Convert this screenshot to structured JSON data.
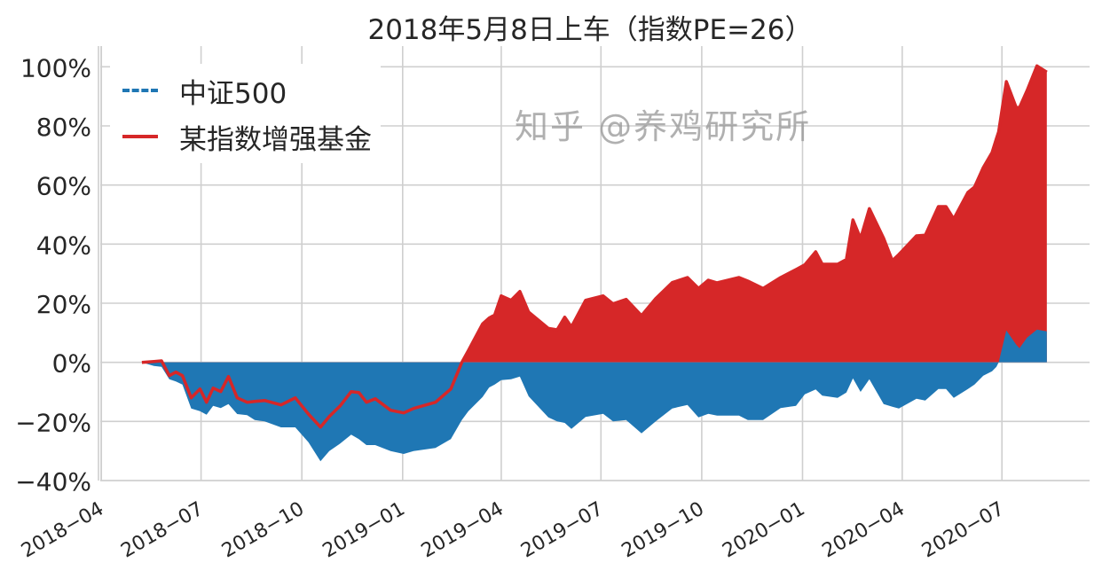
{
  "chart_data": {
    "type": "area",
    "title": "2018年5月8日上车（指数PE=26）",
    "xlabel": "",
    "ylabel": "",
    "xlim": [
      "2018-03-31",
      "2020-09-19"
    ],
    "ylim": [
      -40,
      107
    ],
    "grid": true,
    "legend_position": "top-left",
    "y_ticks": [
      -40,
      -20,
      0,
      20,
      40,
      60,
      80,
      100
    ],
    "y_tick_labels": [
      "−40%",
      "−20%",
      "0%",
      "20%",
      "40%",
      "60%",
      "80%",
      "100%"
    ],
    "x_ticks": [
      "2018-04-01",
      "2018-07-01",
      "2018-10-01",
      "2019-01-01",
      "2019-04-01",
      "2019-07-01",
      "2019-10-01",
      "2020-01-01",
      "2020-04-01",
      "2020-07-01"
    ],
    "x_tick_labels": [
      "2018−04",
      "2018−07",
      "2018−10",
      "2019−01",
      "2019−04",
      "2019−07",
      "2019−10",
      "2020−01",
      "2020−04",
      "2020−07"
    ],
    "series": [
      {
        "name": "中证500",
        "color": "#1f77b4",
        "style": "dashed",
        "points": [
          [
            "2018-05-08",
            0
          ],
          [
            "2018-05-19",
            -1.2
          ],
          [
            "2018-05-26",
            -1.5
          ],
          [
            "2018-06-02",
            -5.7
          ],
          [
            "2018-06-08",
            -6.5
          ],
          [
            "2018-06-14",
            -7.5
          ],
          [
            "2018-06-22",
            -15.6
          ],
          [
            "2018-06-30",
            -16.5
          ],
          [
            "2018-07-06",
            -17.7
          ],
          [
            "2018-07-12",
            -14.7
          ],
          [
            "2018-07-19",
            -15.5
          ],
          [
            "2018-07-26",
            -14.1
          ],
          [
            "2018-08-03",
            -17.5
          ],
          [
            "2018-08-12",
            -17.9
          ],
          [
            "2018-08-19",
            -19.5
          ],
          [
            "2018-08-28",
            -20
          ],
          [
            "2018-09-12",
            -22
          ],
          [
            "2018-09-25",
            -22
          ],
          [
            "2018-10-07",
            -27
          ],
          [
            "2018-10-18",
            -33.5
          ],
          [
            "2018-10-26",
            -30
          ],
          [
            "2018-11-05",
            -27.5
          ],
          [
            "2018-11-15",
            -24.5
          ],
          [
            "2018-11-22",
            -26
          ],
          [
            "2018-11-29",
            -28
          ],
          [
            "2018-12-07",
            -28
          ],
          [
            "2018-12-21",
            -30
          ],
          [
            "2019-01-02",
            -31
          ],
          [
            "2019-01-11",
            -30
          ],
          [
            "2019-01-31",
            -29
          ],
          [
            "2019-02-14",
            -26
          ],
          [
            "2019-02-24",
            -19.5
          ],
          [
            "2019-03-02",
            -16.5
          ],
          [
            "2019-03-15",
            -11.7
          ],
          [
            "2019-03-21",
            -8.5
          ],
          [
            "2019-03-26",
            -7.5
          ],
          [
            "2019-04-01",
            -6
          ],
          [
            "2019-04-10",
            -5.7
          ],
          [
            "2019-04-18",
            -4.8
          ],
          [
            "2019-04-26",
            -11.5
          ],
          [
            "2019-05-14",
            -18.6
          ],
          [
            "2019-05-22",
            -20
          ],
          [
            "2019-05-29",
            -20.5
          ],
          [
            "2019-06-04",
            -22.5
          ],
          [
            "2019-06-17",
            -18.5
          ],
          [
            "2019-07-03",
            -17.4
          ],
          [
            "2019-07-12",
            -20
          ],
          [
            "2019-07-24",
            -19.5
          ],
          [
            "2019-08-07",
            -24
          ],
          [
            "2019-08-20",
            -20
          ],
          [
            "2019-09-04",
            -15.6
          ],
          [
            "2019-09-18",
            -14.4
          ],
          [
            "2019-09-28",
            -18.6
          ],
          [
            "2019-10-07",
            -17.4
          ],
          [
            "2019-10-15",
            -18
          ],
          [
            "2019-11-04",
            -18
          ],
          [
            "2019-11-12",
            -19.5
          ],
          [
            "2019-11-26",
            -19.5
          ],
          [
            "2019-12-12",
            -15.5
          ],
          [
            "2019-12-26",
            -14.7
          ],
          [
            "2020-01-03",
            -10.8
          ],
          [
            "2020-01-13",
            -9.2
          ],
          [
            "2020-01-19",
            -11.3
          ],
          [
            "2020-02-02",
            -12
          ],
          [
            "2020-02-10",
            -10.2
          ],
          [
            "2020-02-16",
            -5.4
          ],
          [
            "2020-02-23",
            -10
          ],
          [
            "2020-03-02",
            -5.7
          ],
          [
            "2020-03-15",
            -14.1
          ],
          [
            "2020-03-23",
            -15
          ],
          [
            "2020-03-29",
            -15.6
          ],
          [
            "2020-04-14",
            -12.3
          ],
          [
            "2020-04-22",
            -12.9
          ],
          [
            "2020-05-04",
            -9
          ],
          [
            "2020-05-11",
            -9
          ],
          [
            "2020-05-18",
            -12
          ],
          [
            "2020-05-31",
            -9
          ],
          [
            "2020-06-06",
            -7.5
          ],
          [
            "2020-06-14",
            -4.5
          ],
          [
            "2020-06-22",
            -3
          ],
          [
            "2020-06-26",
            -1.5
          ],
          [
            "2020-06-28",
            0
          ],
          [
            "2020-07-05",
            10.8
          ],
          [
            "2020-07-14",
            6
          ],
          [
            "2020-07-17",
            4.8
          ],
          [
            "2020-07-24",
            8.4
          ],
          [
            "2020-08-02",
            11.1
          ],
          [
            "2020-08-11",
            10.5
          ]
        ]
      },
      {
        "name": "某指数增强基金",
        "color": "#d62728",
        "style": "solid",
        "points": [
          [
            "2018-05-08",
            0
          ],
          [
            "2018-05-19",
            0.3
          ],
          [
            "2018-05-26",
            0.5
          ],
          [
            "2018-06-02",
            -4.5
          ],
          [
            "2018-06-08",
            -3.3
          ],
          [
            "2018-06-14",
            -4.5
          ],
          [
            "2018-06-22",
            -12
          ],
          [
            "2018-06-30",
            -9
          ],
          [
            "2018-07-06",
            -13.5
          ],
          [
            "2018-07-12",
            -8.7
          ],
          [
            "2018-07-19",
            -9.9
          ],
          [
            "2018-07-26",
            -4.8
          ],
          [
            "2018-08-03",
            -12
          ],
          [
            "2018-08-12",
            -13.5
          ],
          [
            "2018-08-19",
            -13.2
          ],
          [
            "2018-08-28",
            -12.9
          ],
          [
            "2018-09-12",
            -14.4
          ],
          [
            "2018-09-25",
            -12
          ],
          [
            "2018-10-07",
            -17.5
          ],
          [
            "2018-10-18",
            -21.9
          ],
          [
            "2018-10-26",
            -18.3
          ],
          [
            "2018-11-05",
            -14.7
          ],
          [
            "2018-11-15",
            -9.9
          ],
          [
            "2018-11-22",
            -10.2
          ],
          [
            "2018-11-29",
            -13.5
          ],
          [
            "2018-12-07",
            -12.3
          ],
          [
            "2018-12-21",
            -16.2
          ],
          [
            "2019-01-02",
            -17.1
          ],
          [
            "2019-01-11",
            -15.6
          ],
          [
            "2019-01-31",
            -13.5
          ],
          [
            "2019-02-14",
            -9
          ],
          [
            "2019-02-24",
            0
          ],
          [
            "2019-03-02",
            4
          ],
          [
            "2019-03-15",
            13
          ],
          [
            "2019-03-21",
            15
          ],
          [
            "2019-03-26",
            16
          ],
          [
            "2019-04-01",
            22.5
          ],
          [
            "2019-04-10",
            21
          ],
          [
            "2019-04-18",
            24
          ],
          [
            "2019-04-26",
            17
          ],
          [
            "2019-05-14",
            11.5
          ],
          [
            "2019-05-22",
            11
          ],
          [
            "2019-05-29",
            15.3
          ],
          [
            "2019-06-04",
            12
          ],
          [
            "2019-06-17",
            21
          ],
          [
            "2019-07-03",
            22.5
          ],
          [
            "2019-07-12",
            19.8
          ],
          [
            "2019-07-24",
            21.3
          ],
          [
            "2019-08-07",
            15.8
          ],
          [
            "2019-08-20",
            21.6
          ],
          [
            "2019-09-04",
            27
          ],
          [
            "2019-09-18",
            28.7
          ],
          [
            "2019-09-28",
            25
          ],
          [
            "2019-10-07",
            27.8
          ],
          [
            "2019-10-15",
            26.9
          ],
          [
            "2019-11-04",
            28.7
          ],
          [
            "2019-11-12",
            27.5
          ],
          [
            "2019-11-26",
            25
          ],
          [
            "2019-12-12",
            28.7
          ],
          [
            "2019-12-26",
            31.4
          ],
          [
            "2020-01-03",
            33
          ],
          [
            "2020-01-13",
            37.4
          ],
          [
            "2020-01-19",
            33.2
          ],
          [
            "2020-02-02",
            33.2
          ],
          [
            "2020-02-10",
            34.8
          ],
          [
            "2020-02-16",
            48.2
          ],
          [
            "2020-02-23",
            41.9
          ],
          [
            "2020-03-02",
            52
          ],
          [
            "2020-03-15",
            42
          ],
          [
            "2020-03-23",
            34.4
          ],
          [
            "2020-03-29",
            36.5
          ],
          [
            "2020-04-14",
            42.8
          ],
          [
            "2020-04-22",
            43
          ],
          [
            "2020-05-04",
            52.7
          ],
          [
            "2020-05-11",
            52.7
          ],
          [
            "2020-05-18",
            48.5
          ],
          [
            "2020-05-31",
            57.5
          ],
          [
            "2020-06-06",
            59.3
          ],
          [
            "2020-06-14",
            65.9
          ],
          [
            "2020-06-22",
            71
          ],
          [
            "2020-06-26",
            75.7
          ],
          [
            "2020-06-28",
            78
          ],
          [
            "2020-07-05",
            95
          ],
          [
            "2020-07-14",
            86.2
          ],
          [
            "2020-07-17",
            86.2
          ],
          [
            "2020-07-24",
            92
          ],
          [
            "2020-08-02",
            100.3
          ],
          [
            "2020-08-11",
            98.2
          ]
        ]
      }
    ]
  },
  "watermark": "知乎 @养鸡研究所"
}
